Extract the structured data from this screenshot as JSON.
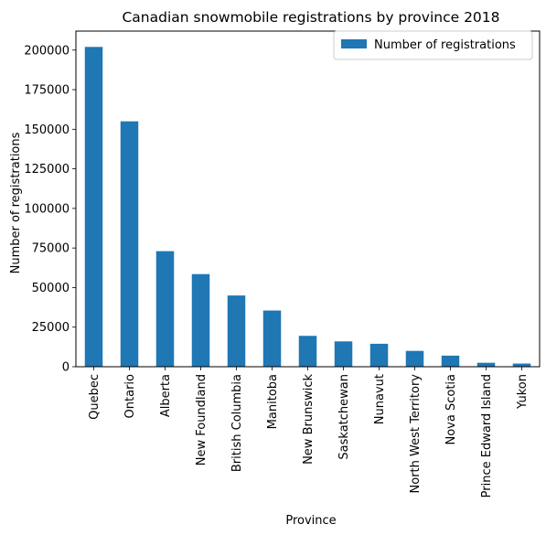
{
  "chart_data": {
    "type": "bar",
    "title": "Canadian snowmobile registrations by province 2018",
    "xlabel": "Province",
    "ylabel": "Number of registrations",
    "categories": [
      "Quebec",
      "Ontario",
      "Alberta",
      "New Foundland",
      "British Columbia",
      "Manitoba",
      "New Brunswick",
      "Saskatchewan",
      "Nunavut",
      "North West Territory",
      "Nova Scotia",
      "Prince Edward Island",
      "Yukon"
    ],
    "series": [
      {
        "name": "Number of registrations",
        "values": [
          202000,
          155000,
          73000,
          58500,
          45000,
          35500,
          19500,
          16000,
          14500,
          10000,
          7000,
          2500,
          2000
        ],
        "color": "#1f77b4"
      }
    ],
    "yticks": [
      0,
      25000,
      50000,
      75000,
      100000,
      125000,
      150000,
      175000,
      200000
    ],
    "ylim": [
      0,
      212000
    ],
    "grid": false,
    "legend_position": "top-right"
  }
}
